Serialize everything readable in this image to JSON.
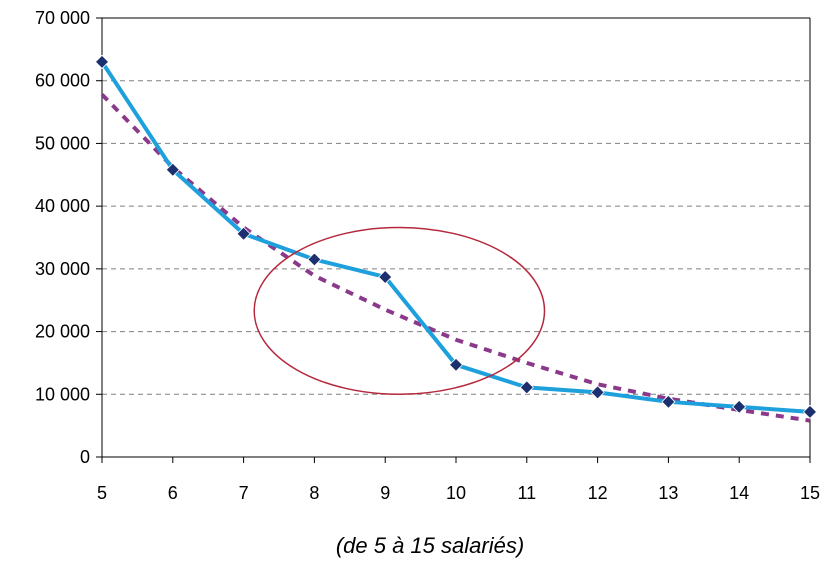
{
  "chart_data": {
    "type": "line",
    "caption": "(de 5 à 15 salariés)",
    "x": [
      5,
      6,
      7,
      8,
      9,
      10,
      11,
      12,
      13,
      14,
      15
    ],
    "xlim": [
      5,
      15
    ],
    "ylim": [
      0,
      70000
    ],
    "x_ticks": [
      5,
      6,
      7,
      8,
      9,
      10,
      11,
      12,
      13,
      14,
      15
    ],
    "y_ticks": [
      0,
      10000,
      20000,
      30000,
      40000,
      50000,
      60000,
      70000
    ],
    "y_tick_labels": [
      "0",
      "10 000",
      "20 000",
      "30 000",
      "40 000",
      "50 000",
      "60 000",
      "70 000"
    ],
    "grid": "horizontal-dashed",
    "series": [
      {
        "style": "solid-with-markers",
        "color": "#1ea0dc",
        "marker_color": "#1c2f6e",
        "values": [
          63000,
          45800,
          35600,
          31500,
          28700,
          14700,
          11100,
          10300,
          8800,
          8000,
          7200
        ]
      },
      {
        "style": "dotted",
        "color": "#8b3a8b",
        "values": [
          57800,
          46200,
          36600,
          28900,
          23500,
          18700,
          15000,
          11600,
          9300,
          7500,
          5800
        ]
      }
    ],
    "annotation": {
      "shape": "ellipse",
      "color": "#b5283c",
      "center_x": 9.2,
      "center_y": 23300,
      "radius_x": 2.05,
      "radius_y": 13300
    }
  }
}
